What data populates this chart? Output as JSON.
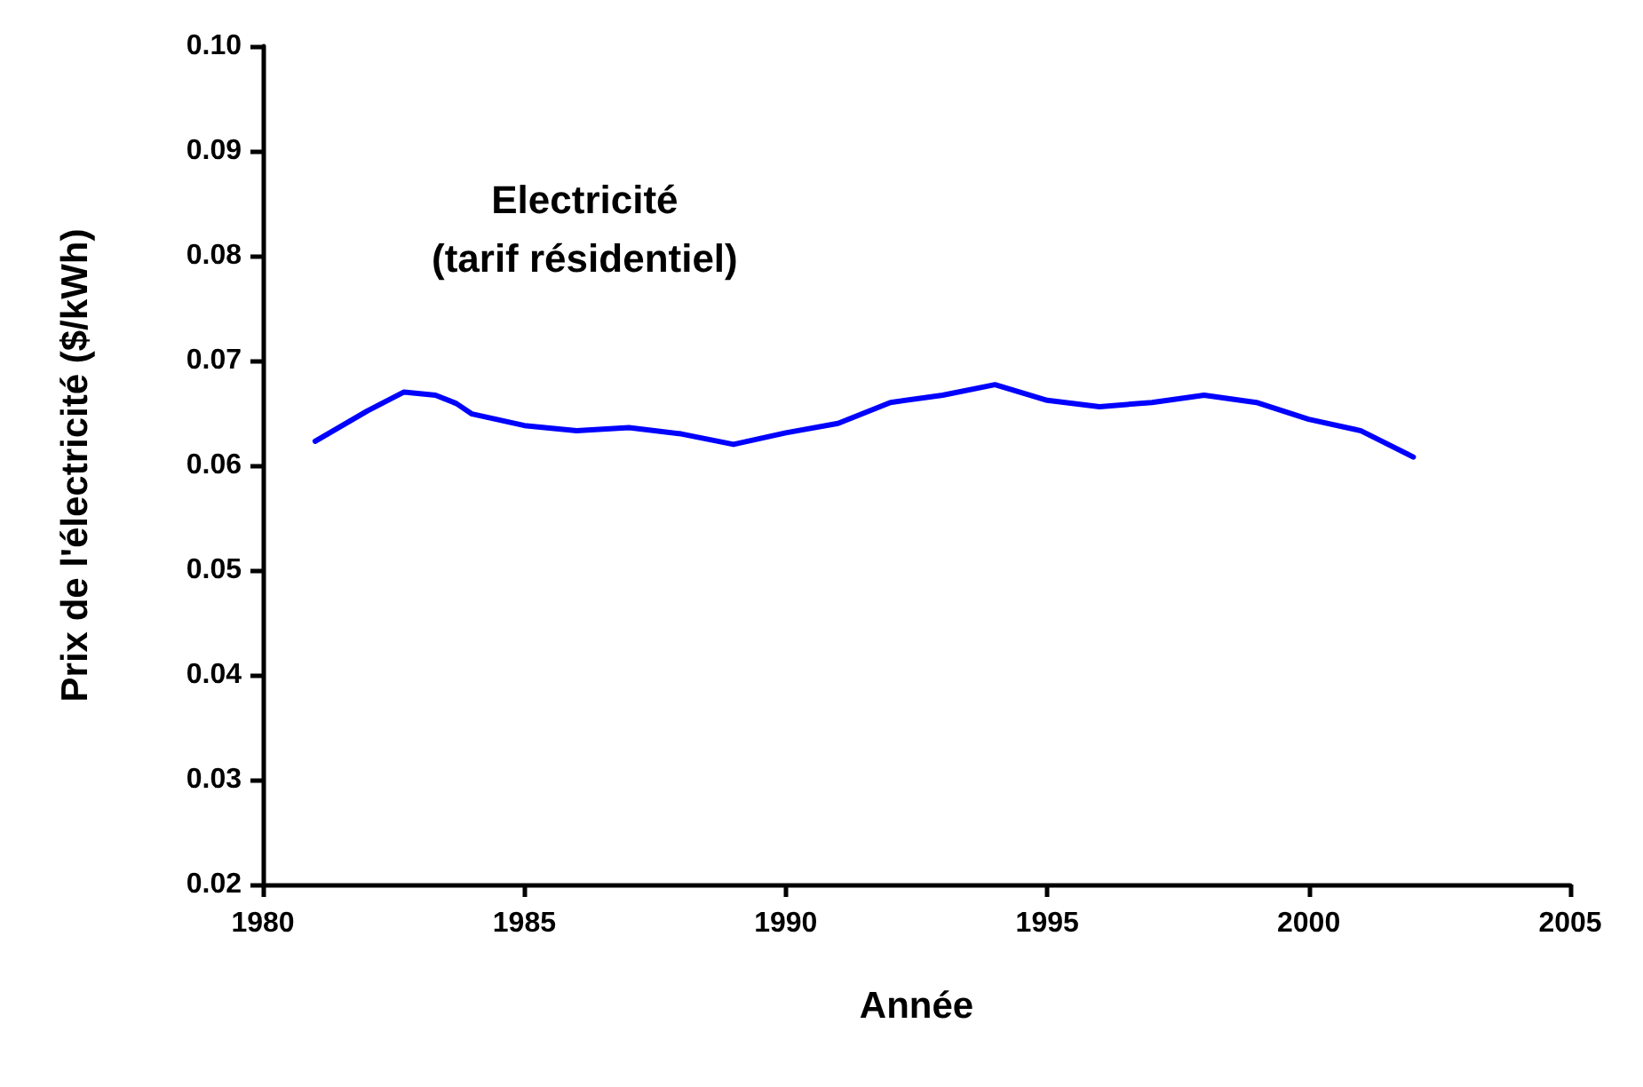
{
  "chart_data": {
    "type": "line",
    "xlabel": "Année",
    "ylabel": "Prix de l'électricité ($/kWh)",
    "annotations": [
      "Electricité\n(tarif résidentiel)"
    ],
    "x": [
      1981,
      1982,
      1982.7,
      1983.3,
      1983.7,
      1984,
      1985,
      1986,
      1987,
      1988,
      1989,
      1990,
      1991,
      1992,
      1993,
      1994,
      1995,
      1996,
      1997,
      1998,
      1999,
      2000,
      2001,
      2002
    ],
    "series": [
      {
        "color": "#0000ff",
        "values": [
          0.0623,
          0.0652,
          0.067,
          0.0667,
          0.0659,
          0.0649,
          0.0638,
          0.0633,
          0.0636,
          0.063,
          0.062,
          0.0631,
          0.064,
          0.066,
          0.0667,
          0.0677,
          0.0662,
          0.0656,
          0.066,
          0.0667,
          0.066,
          0.0644,
          0.0633,
          0.0608
        ]
      }
    ],
    "xlim": [
      1980,
      2005
    ],
    "xticks": [
      1980,
      1985,
      1990,
      1995,
      2000,
      2005
    ],
    "ylim": [
      0.02,
      0.1
    ],
    "yticks": [
      0.02,
      0.03,
      0.04,
      0.05,
      0.06,
      0.07,
      0.08,
      0.09,
      {
        "value": 0.1,
        "label": "0.10"
      }
    ],
    "grid": false,
    "marker": "none",
    "line_style": "solid"
  }
}
